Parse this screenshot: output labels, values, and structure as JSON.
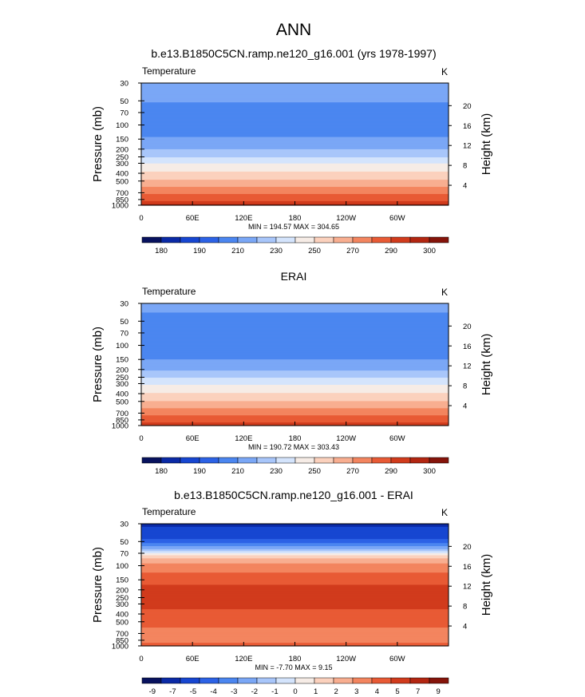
{
  "figure_title": "ANN",
  "colors": {
    "cold_to_warm": [
      "#08125e",
      "#0b2aa6",
      "#1746d1",
      "#2c62e6",
      "#4b86f0",
      "#7aa7f6",
      "#a8c6fa",
      "#d4e4fc",
      "#f6ece6",
      "#fbd1bd",
      "#f8ae90",
      "#f3855f",
      "#e85a35",
      "#d13b1c",
      "#b32611",
      "#85140a"
    ]
  },
  "chart_data": [
    {
      "type": "heatmap",
      "title": "b.e13.B1850C5CN.ramp.ne120_g16.001 (yrs 1978-1997)",
      "variable": "Temperature",
      "units": "K",
      "ylabel": "Pressure (mb)",
      "ylabel_right": "Height (km)",
      "x_ticks": [
        "0",
        "60E",
        "120E",
        "180",
        "120W",
        "60W"
      ],
      "y_ticks": [
        "30",
        "50",
        "70",
        "100",
        "150",
        "200",
        "250",
        "300",
        "400",
        "500",
        "700",
        "850",
        "1000"
      ],
      "height_ticks": [
        "20",
        "16",
        "12",
        "8",
        "4"
      ],
      "ylim": [
        1000,
        30
      ],
      "min_label": "MIN = 194.57  MAX = 304.65",
      "min": 194.57,
      "max": 304.65,
      "colorbar_labels": [
        "180",
        "190",
        "210",
        "230",
        "250",
        "270",
        "290",
        "300"
      ],
      "levels": [
        175,
        180,
        185,
        190,
        200,
        210,
        220,
        230,
        240,
        250,
        260,
        270,
        280,
        290,
        295,
        300,
        305
      ],
      "profile": [
        {
          "p": 30,
          "v": 214
        },
        {
          "p": 50,
          "v": 211
        },
        {
          "p": 70,
          "v": 205
        },
        {
          "p": 100,
          "v": 203
        },
        {
          "p": 150,
          "v": 211
        },
        {
          "p": 200,
          "v": 220
        },
        {
          "p": 250,
          "v": 230
        },
        {
          "p": 300,
          "v": 240
        },
        {
          "p": 400,
          "v": 252
        },
        {
          "p": 500,
          "v": 262
        },
        {
          "p": 700,
          "v": 278
        },
        {
          "p": 850,
          "v": 288
        },
        {
          "p": 1000,
          "v": 296
        }
      ]
    },
    {
      "type": "heatmap",
      "title": "ERAI",
      "variable": "Temperature",
      "units": "K",
      "ylabel": "Pressure (mb)",
      "ylabel_right": "Height (km)",
      "x_ticks": [
        "0",
        "60E",
        "120E",
        "180",
        "120W",
        "60W"
      ],
      "y_ticks": [
        "30",
        "50",
        "70",
        "100",
        "150",
        "200",
        "250",
        "300",
        "400",
        "500",
        "700",
        "850",
        "1000"
      ],
      "height_ticks": [
        "20",
        "16",
        "12",
        "8",
        "4"
      ],
      "ylim": [
        1000,
        30
      ],
      "min_label": "MIN = 190.72  MAX = 303.43",
      "min": 190.72,
      "max": 303.43,
      "colorbar_labels": [
        "180",
        "190",
        "210",
        "230",
        "250",
        "270",
        "290",
        "300"
      ],
      "levels": [
        175,
        180,
        185,
        190,
        200,
        210,
        220,
        230,
        240,
        250,
        260,
        270,
        280,
        290,
        295,
        300,
        305
      ],
      "profile": [
        {
          "p": 30,
          "v": 212
        },
        {
          "p": 50,
          "v": 208
        },
        {
          "p": 70,
          "v": 202
        },
        {
          "p": 100,
          "v": 201
        },
        {
          "p": 150,
          "v": 210
        },
        {
          "p": 200,
          "v": 219
        },
        {
          "p": 250,
          "v": 229
        },
        {
          "p": 300,
          "v": 239
        },
        {
          "p": 400,
          "v": 251
        },
        {
          "p": 500,
          "v": 261
        },
        {
          "p": 700,
          "v": 277
        },
        {
          "p": 850,
          "v": 287
        },
        {
          "p": 1000,
          "v": 295
        }
      ]
    },
    {
      "type": "heatmap",
      "title": "b.e13.B1850C5CN.ramp.ne120_g16.001 - ERAI",
      "variable": "Temperature",
      "units": "K",
      "ylabel": "Pressure (mb)",
      "ylabel_right": "Height (km)",
      "x_ticks": [
        "0",
        "60E",
        "120E",
        "180",
        "120W",
        "60W"
      ],
      "y_ticks": [
        "30",
        "50",
        "70",
        "100",
        "150",
        "200",
        "250",
        "300",
        "400",
        "500",
        "700",
        "850",
        "1000"
      ],
      "height_ticks": [
        "20",
        "16",
        "12",
        "8",
        "4"
      ],
      "ylim": [
        1000,
        30
      ],
      "min_label": "MIN = -7.70  MAX =  9.15",
      "min": -7.7,
      "max": 9.15,
      "colorbar_labels": [
        "-9",
        "-7",
        "-5",
        "-4",
        "-3",
        "-2",
        "-1",
        "0",
        "1",
        "2",
        "3",
        "4",
        "5",
        "7",
        "9"
      ],
      "levels": [
        -11,
        -9,
        -7,
        -5,
        -4,
        -3,
        -2,
        -1,
        0,
        1,
        2,
        3,
        4,
        5,
        7,
        9,
        11
      ],
      "profile": [
        {
          "p": 30,
          "v": -7.5
        },
        {
          "p": 40,
          "v": -6
        },
        {
          "p": 50,
          "v": -4.5
        },
        {
          "p": 60,
          "v": -2.5
        },
        {
          "p": 70,
          "v": 0
        },
        {
          "p": 80,
          "v": 2
        },
        {
          "p": 100,
          "v": 3.5
        },
        {
          "p": 150,
          "v": 4.5
        },
        {
          "p": 200,
          "v": 5.5
        },
        {
          "p": 300,
          "v": 5.5
        },
        {
          "p": 400,
          "v": 4.5
        },
        {
          "p": 500,
          "v": 4.5
        },
        {
          "p": 700,
          "v": 3.5
        },
        {
          "p": 850,
          "v": 3.5
        },
        {
          "p": 1000,
          "v": 4.5
        }
      ]
    }
  ]
}
